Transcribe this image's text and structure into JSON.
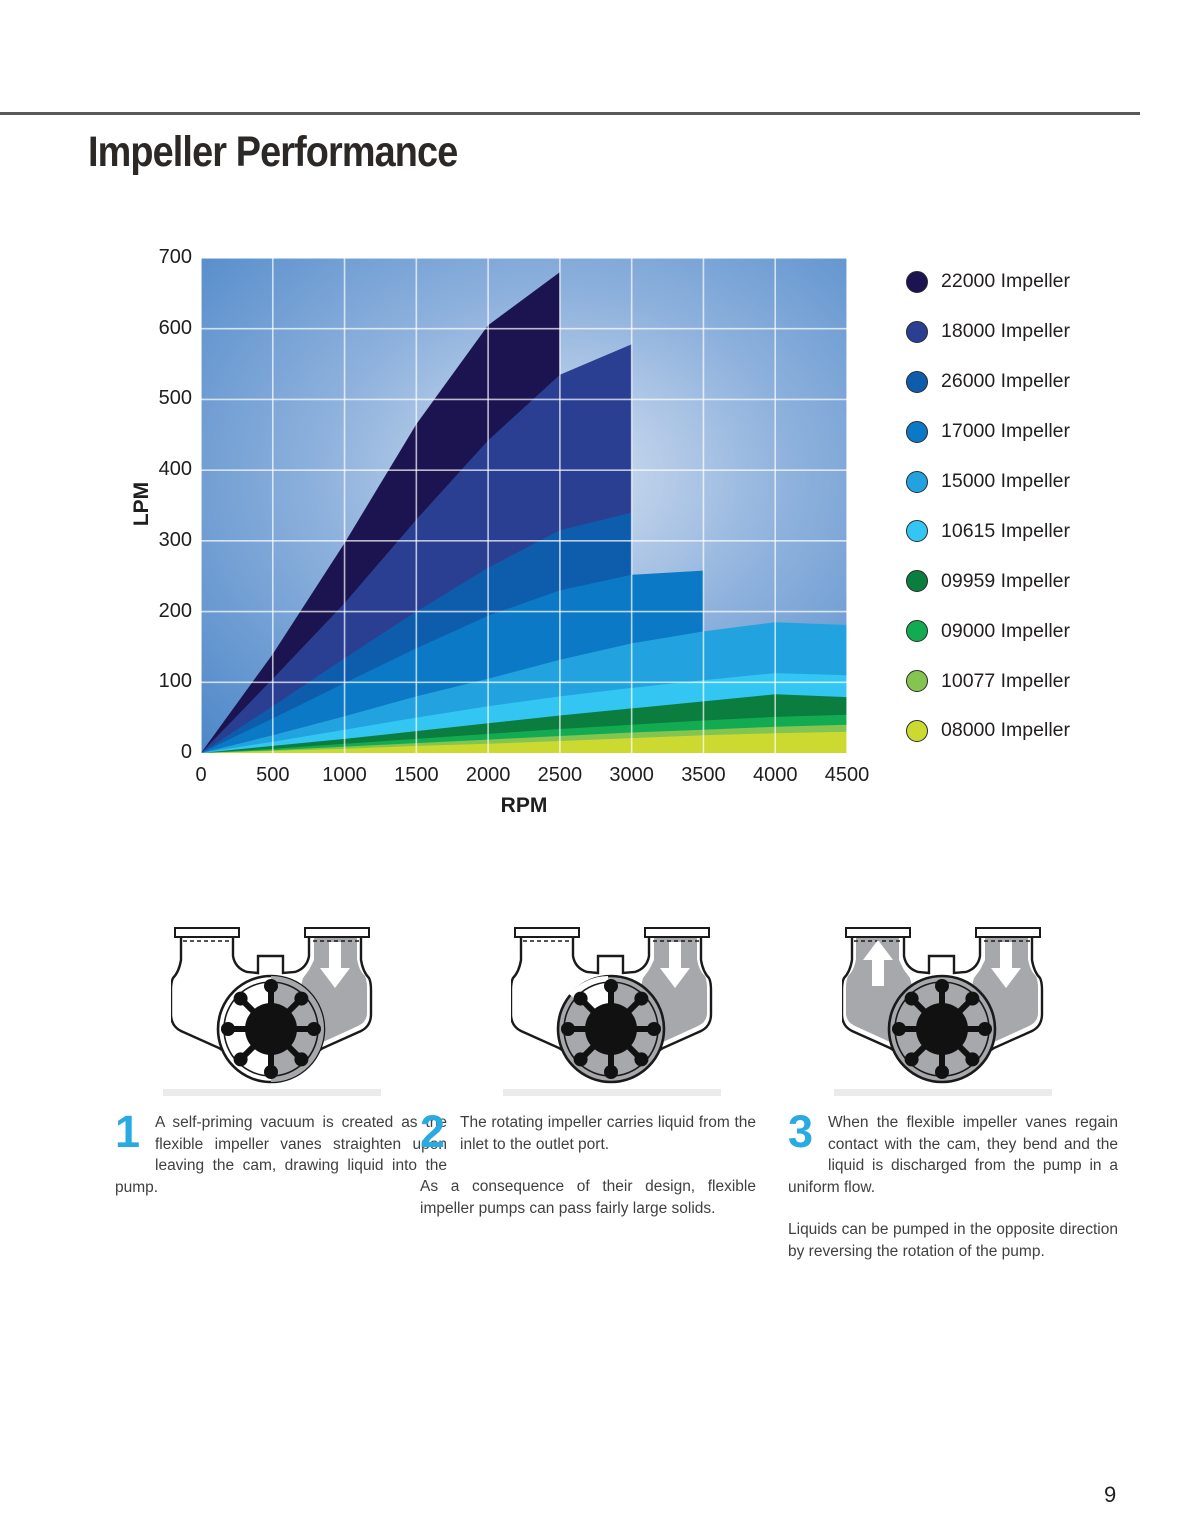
{
  "page": {
    "title": "Impeller Performance",
    "page_number": "9"
  },
  "chart_data": {
    "type": "area",
    "title": "",
    "xlabel": "RPM",
    "ylabel": "LPM",
    "xlim": [
      0,
      4500
    ],
    "ylim": [
      0,
      700
    ],
    "grid": true,
    "legend_position": "right",
    "background": {
      "center": "#d6e1f1",
      "mid": "#8fb2dd",
      "edge": "#4a85c7"
    },
    "x_ticks": [
      0,
      500,
      1000,
      1500,
      2000,
      2500,
      3000,
      3500,
      4000,
      4500
    ],
    "y_ticks": [
      0,
      100,
      200,
      300,
      400,
      500,
      600,
      700
    ],
    "x": [
      0,
      500,
      1000,
      1500,
      2000,
      2500,
      3000,
      3500,
      4000,
      4500
    ],
    "series": [
      {
        "name": "22000 Impeller",
        "color": "#1b1450",
        "values": [
          0,
          140,
          297,
          465,
          605,
          680
        ]
      },
      {
        "name": "18000 Impeller",
        "color": "#2b3f92",
        "values": [
          0,
          105,
          212,
          330,
          442,
          535,
          578
        ]
      },
      {
        "name": "26000 Impeller",
        "color": "#0e5dad",
        "values": [
          0,
          66,
          134,
          200,
          262,
          315,
          340
        ]
      },
      {
        "name": "17000 Impeller",
        "color": "#0b79c6",
        "values": [
          0,
          49,
          99,
          148,
          194,
          230,
          252,
          258
        ]
      },
      {
        "name": "15000 Impeller",
        "color": "#22a3e0",
        "values": [
          0,
          25,
          52,
          80,
          105,
          132,
          155,
          172,
          185,
          181
        ]
      },
      {
        "name": "10615 Impeller",
        "color": "#33c6f2",
        "values": [
          0,
          16,
          33,
          50,
          66,
          80,
          92,
          103,
          113,
          110
        ]
      },
      {
        "name": "09959 Impeller",
        "color": "#0b7d3f",
        "values": [
          0,
          10,
          20,
          31,
          42,
          53,
          63,
          73,
          83,
          79
        ]
      },
      {
        "name": "09000 Impeller",
        "color": "#12ab52",
        "values": [
          0,
          6,
          13,
          20,
          27,
          34,
          40,
          46,
          51,
          54
        ]
      },
      {
        "name": "10077 Impeller",
        "color": "#84c450",
        "values": [
          0,
          4,
          9,
          14,
          19,
          24,
          29,
          33,
          37,
          40
        ]
      },
      {
        "name": "08000 Impeller",
        "color": "#ccd930",
        "values": [
          0,
          3,
          6,
          10,
          13,
          17,
          21,
          25,
          28,
          30
        ]
      }
    ]
  },
  "diagrams": [
    {
      "left_arrow": "none",
      "right_arrow": "down",
      "chamber": "half"
    },
    {
      "left_arrow": "none",
      "right_arrow": "down",
      "chamber": "most"
    },
    {
      "left_arrow": "up",
      "right_arrow": "down",
      "chamber": "full"
    }
  ],
  "steps": [
    {
      "number": "1",
      "paragraphs": [
        "A self-priming vacuum is created as the flexible impeller vanes straighten upon leaving the cam, drawing liquid into the pump."
      ]
    },
    {
      "number": "2",
      "paragraphs": [
        "The rotating impeller carries liquid from the inlet to the outlet port.",
        "As a consequence of their design, flexible impeller pumps can pass fairly large solids."
      ]
    },
    {
      "number": "3",
      "paragraphs": [
        "When the flexible impeller vanes regain contact with the cam, they bend and the liquid is discharged from the pump in a uniform flow.",
        "Liquids can be pumped in the opposite direction by reversing the rotation of the pump."
      ]
    }
  ],
  "colors": {
    "accent_number": "#29abe2",
    "rule": "#58595b",
    "housing_gray": "#a6a8ab",
    "grid_line": "rgba(255,255,255,0.7)"
  }
}
